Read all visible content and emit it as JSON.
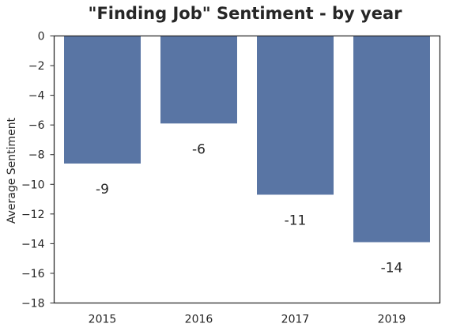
{
  "chart_data": {
    "type": "bar",
    "title": "\"Finding Job\" Sentiment - by year",
    "xlabel": "",
    "ylabel": "Average Sentiment",
    "categories": [
      "2015",
      "2016",
      "2017",
      "2019"
    ],
    "values": [
      -8.6,
      -5.9,
      -10.7,
      -13.9
    ],
    "data_labels": [
      "-9",
      "-6",
      "-11",
      "-14"
    ],
    "ylim": [
      -18,
      0
    ],
    "yticks": [
      0,
      -2,
      -4,
      -6,
      -8,
      -10,
      -12,
      -14,
      -16,
      -18
    ],
    "ytick_labels": [
      "0",
      "−2",
      "−4",
      "−6",
      "−8",
      "−10",
      "−12",
      "−14",
      "−16",
      "−18"
    ],
    "grid": false,
    "bar_color": "#5975a4",
    "frame_color": "#262626"
  }
}
